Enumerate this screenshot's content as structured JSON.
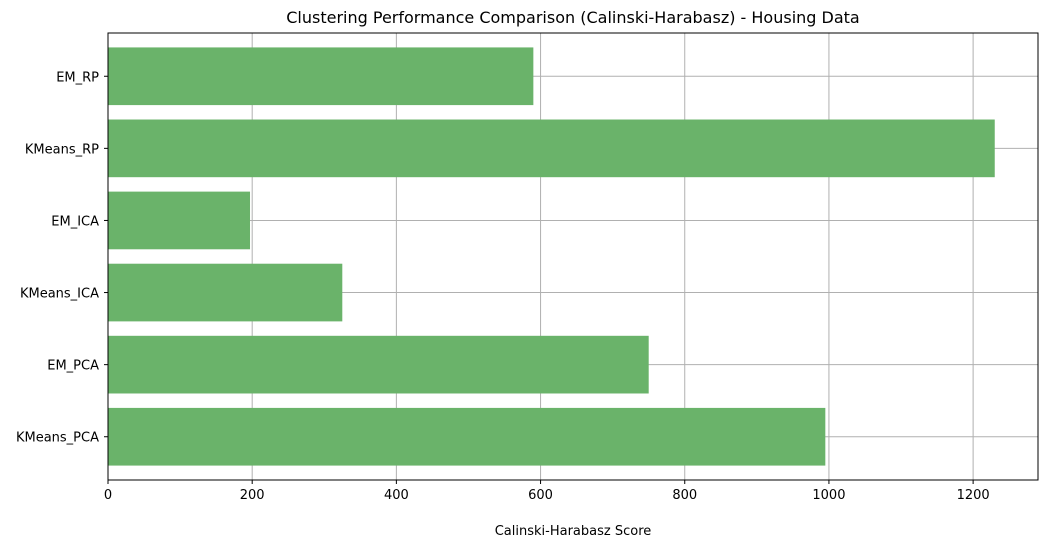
{
  "chart_data": {
    "type": "bar",
    "orientation": "horizontal",
    "title": "Clustering Performance Comparison (Calinski-Harabasz) - Housing Data",
    "xlabel": "Calinski-Harabasz Score",
    "ylabel": "",
    "categories": [
      "KMeans_PCA",
      "EM_PCA",
      "KMeans_ICA",
      "EM_ICA",
      "KMeans_RP",
      "EM_RP"
    ],
    "values": [
      995,
      750,
      325,
      197,
      1230,
      590
    ],
    "xlim": [
      0,
      1290
    ],
    "xticks": [
      0,
      200,
      400,
      600,
      800,
      1000,
      1200
    ],
    "grid": true,
    "legend": "none",
    "colors": {
      "bar": "#6ab36a",
      "grid": "#b0b0b0",
      "axis": "#000000"
    }
  }
}
